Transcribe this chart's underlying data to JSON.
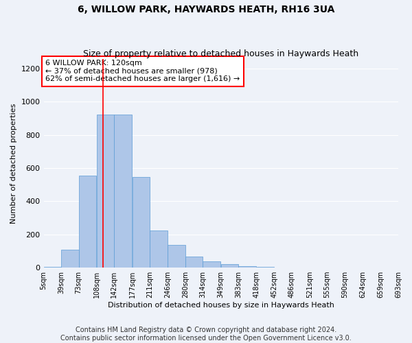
{
  "title": "6, WILLOW PARK, HAYWARDS HEATH, RH16 3UA",
  "subtitle": "Size of property relative to detached houses in Haywards Heath",
  "xlabel": "Distribution of detached houses by size in Haywards Heath",
  "ylabel": "Number of detached properties",
  "bin_edges": [
    5,
    39,
    73,
    108,
    142,
    177,
    211,
    246,
    280,
    314,
    349,
    383,
    418,
    452,
    486,
    521,
    555,
    590,
    624,
    659,
    693
  ],
  "bar_heights": [
    5,
    110,
    555,
    925,
    925,
    545,
    225,
    135,
    65,
    37,
    20,
    10,
    5,
    0,
    0,
    0,
    0,
    0,
    0,
    0
  ],
  "tick_labels": [
    "5sqm",
    "39sqm",
    "73sqm",
    "108sqm",
    "142sqm",
    "177sqm",
    "211sqm",
    "246sqm",
    "280sqm",
    "314sqm",
    "349sqm",
    "383sqm",
    "418sqm",
    "452sqm",
    "486sqm",
    "521sqm",
    "555sqm",
    "590sqm",
    "624sqm",
    "659sqm",
    "693sqm"
  ],
  "bar_color": "#aec6e8",
  "bar_edge_color": "#5b9bd5",
  "vline_x": 120,
  "vline_color": "red",
  "annotation_text": "6 WILLOW PARK: 120sqm\n← 37% of detached houses are smaller (978)\n62% of semi-detached houses are larger (1,616) →",
  "annotation_box_color": "white",
  "annotation_box_edge": "red",
  "ylim": [
    0,
    1260
  ],
  "yticks": [
    0,
    200,
    400,
    600,
    800,
    1000,
    1200
  ],
  "footer": "Contains HM Land Registry data © Crown copyright and database right 2024.\nContains public sector information licensed under the Open Government Licence v3.0.",
  "bg_color": "#eef2f9",
  "grid_color": "#ffffff",
  "title_fontsize": 10,
  "subtitle_fontsize": 9,
  "axis_label_fontsize": 8,
  "tick_fontsize": 7,
  "footer_fontsize": 7,
  "annot_fontsize": 8
}
